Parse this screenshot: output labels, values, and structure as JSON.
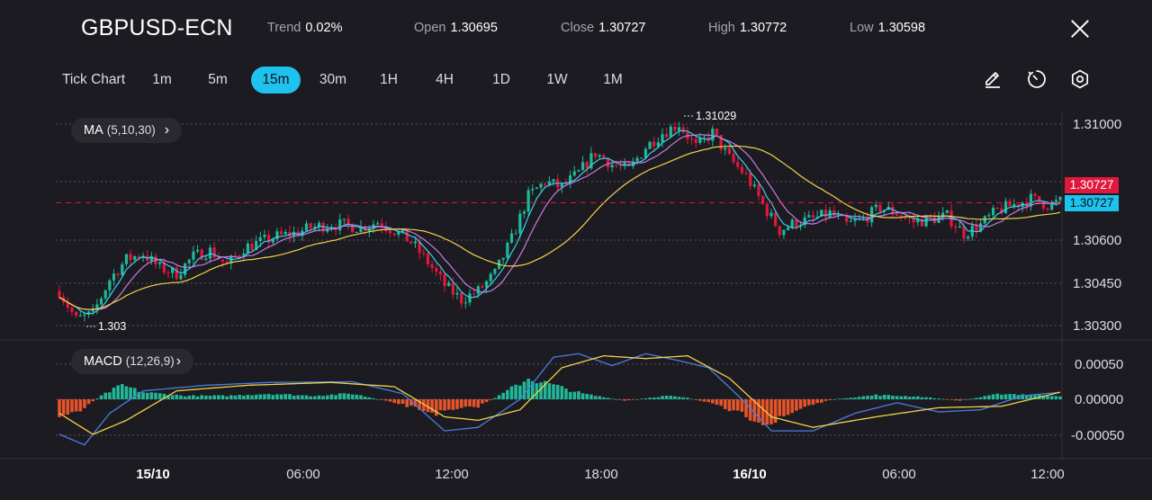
{
  "header": {
    "symbol": "GBPUSD-ECN",
    "stats": [
      {
        "label": "Trend",
        "value": "0.02%"
      },
      {
        "label": "Open",
        "value": "1.30695"
      },
      {
        "label": "Close",
        "value": "1.30727"
      },
      {
        "label": "High",
        "value": "1.30772"
      },
      {
        "label": "Low",
        "value": "1.30598"
      }
    ]
  },
  "timeframes": {
    "items": [
      "Tick Chart",
      "1m",
      "5m",
      "15m",
      "30m",
      "1H",
      "4H",
      "1D",
      "1W",
      "1M"
    ],
    "active": "15m"
  },
  "tools": [
    "draw-icon",
    "timer-icon",
    "settings-icon"
  ],
  "indicators": {
    "ma": {
      "name": "MA",
      "params": "(5,10,30)"
    },
    "macd": {
      "name": "MACD",
      "params": "(12,26,9)"
    }
  },
  "price_tags": {
    "close": "1.30727",
    "last": "1.30727"
  },
  "colors": {
    "up": "#1fb997",
    "down": "#e0193c",
    "accent": "#1ec2ee",
    "ma5": "#3ad0f0",
    "ma10": "#c27de0",
    "ma30": "#f0d34a",
    "macd": "#4a7de0",
    "signal": "#f0d34a",
    "hist_down": "#e8542a"
  },
  "chart_data": [
    {
      "type": "candlestick",
      "y_ticks": [
        "1.31000",
        "1.30600",
        "1.30450",
        "1.30300"
      ],
      "x_ticks": [
        "15/10",
        "06:00",
        "12:00",
        "18:00",
        "16/10",
        "06:00",
        "12:00"
      ],
      "ylim": [
        1.3027,
        1.3115
      ],
      "annotations": {
        "high": "1.31029",
        "low": "1.303"
      },
      "close_line": 1.30727,
      "ohlc_anchors": [
        [
          0,
          1.3042
        ],
        [
          4,
          1.3032
        ],
        [
          8,
          1.3034
        ],
        [
          12,
          1.3046
        ],
        [
          16,
          1.3053
        ],
        [
          20,
          1.3055
        ],
        [
          24,
          1.305
        ],
        [
          28,
          1.3048
        ],
        [
          32,
          1.3054
        ],
        [
          36,
          1.3056
        ],
        [
          40,
          1.3051
        ],
        [
          44,
          1.3057
        ],
        [
          48,
          1.3059
        ],
        [
          52,
          1.3061
        ],
        [
          56,
          1.3062
        ],
        [
          60,
          1.3064
        ],
        [
          64,
          1.3065
        ],
        [
          68,
          1.3065
        ],
        [
          72,
          1.3064
        ],
        [
          76,
          1.3066
        ],
        [
          80,
          1.3063
        ],
        [
          84,
          1.3059
        ],
        [
          88,
          1.3052
        ],
        [
          92,
          1.3044
        ],
        [
          96,
          1.3039
        ],
        [
          100,
          1.3042
        ],
        [
          104,
          1.3048
        ],
        [
          108,
          1.306
        ],
        [
          112,
          1.3075
        ],
        [
          116,
          1.308
        ],
        [
          120,
          1.3078
        ],
        [
          124,
          1.3083
        ],
        [
          128,
          1.309
        ],
        [
          132,
          1.3086
        ],
        [
          136,
          1.3084
        ],
        [
          140,
          1.3092
        ],
        [
          144,
          1.3097
        ],
        [
          148,
          1.31
        ],
        [
          152,
          1.3092
        ],
        [
          156,
          1.3097
        ],
        [
          160,
          1.3088
        ],
        [
          164,
          1.3082
        ],
        [
          168,
          1.3072
        ],
        [
          172,
          1.3063
        ],
        [
          176,
          1.3066
        ],
        [
          180,
          1.3067
        ],
        [
          184,
          1.3069
        ],
        [
          188,
          1.3065
        ],
        [
          192,
          1.3067
        ],
        [
          196,
          1.3071
        ],
        [
          200,
          1.3069
        ],
        [
          204,
          1.3066
        ],
        [
          208,
          1.3067
        ],
        [
          212,
          1.3068
        ],
        [
          216,
          1.3062
        ],
        [
          220,
          1.3065
        ],
        [
          224,
          1.307
        ],
        [
          228,
          1.3072
        ],
        [
          232,
          1.3074
        ],
        [
          236,
          1.3072
        ],
        [
          239,
          1.3073
        ]
      ]
    },
    {
      "type": "macd",
      "y_ticks": [
        "0.00050",
        "0.00000",
        "-0.00050"
      ],
      "ylim": [
        -0.0008,
        0.0008
      ],
      "histogram_anchors": [
        [
          0,
          -0.00025
        ],
        [
          5,
          -0.00015
        ],
        [
          10,
          5e-05
        ],
        [
          15,
          0.0002
        ],
        [
          20,
          0.0001
        ],
        [
          30,
          5e-05
        ],
        [
          40,
          5e-05
        ],
        [
          50,
          8e-05
        ],
        [
          60,
          5e-05
        ],
        [
          70,
          8e-05
        ],
        [
          80,
          -5e-05
        ],
        [
          90,
          -0.0002
        ],
        [
          100,
          -0.0001
        ],
        [
          105,
          5e-05
        ],
        [
          112,
          0.0003
        ],
        [
          118,
          0.0002
        ],
        [
          125,
          8e-05
        ],
        [
          135,
          -2e-05
        ],
        [
          145,
          5e-05
        ],
        [
          150,
          2e-05
        ],
        [
          155,
          -5e-05
        ],
        [
          162,
          -0.0002
        ],
        [
          170,
          -0.00035
        ],
        [
          178,
          -0.0001
        ],
        [
          185,
          0.0
        ],
        [
          195,
          6e-05
        ],
        [
          205,
          4e-05
        ],
        [
          215,
          -2e-05
        ],
        [
          225,
          8e-05
        ],
        [
          239,
          5e-05
        ]
      ],
      "macd_anchors": [
        [
          0,
          -0.0005
        ],
        [
          6,
          -0.00065
        ],
        [
          12,
          -0.0002
        ],
        [
          20,
          0.00012
        ],
        [
          35,
          0.0002
        ],
        [
          50,
          0.00024
        ],
        [
          70,
          0.00025
        ],
        [
          82,
          8e-05
        ],
        [
          92,
          -0.00045
        ],
        [
          100,
          -0.0004
        ],
        [
          110,
          0.0
        ],
        [
          118,
          0.0006
        ],
        [
          124,
          0.00065
        ],
        [
          132,
          0.00048
        ],
        [
          140,
          0.00065
        ],
        [
          148,
          0.00055
        ],
        [
          155,
          0.00045
        ],
        [
          163,
          0.0
        ],
        [
          170,
          -0.00045
        ],
        [
          180,
          -0.00045
        ],
        [
          190,
          -0.0002
        ],
        [
          200,
          -5e-05
        ],
        [
          210,
          -0.00018
        ],
        [
          220,
          -0.00015
        ],
        [
          230,
          5e-05
        ],
        [
          239,
          0.0001
        ]
      ],
      "signal_anchors": [
        [
          0,
          -0.0002
        ],
        [
          8,
          -0.0005
        ],
        [
          16,
          -0.0003
        ],
        [
          28,
          0.00012
        ],
        [
          45,
          0.0002
        ],
        [
          65,
          0.00024
        ],
        [
          80,
          0.00018
        ],
        [
          92,
          -0.00025
        ],
        [
          100,
          -0.0003
        ],
        [
          110,
          -0.00015
        ],
        [
          120,
          0.00045
        ],
        [
          130,
          0.00062
        ],
        [
          140,
          0.00058
        ],
        [
          150,
          0.00062
        ],
        [
          160,
          0.0003
        ],
        [
          170,
          -0.00025
        ],
        [
          180,
          -0.0004
        ],
        [
          195,
          -0.00025
        ],
        [
          210,
          -0.00012
        ],
        [
          225,
          -0.0001
        ],
        [
          239,
          0.0001
        ]
      ]
    }
  ]
}
